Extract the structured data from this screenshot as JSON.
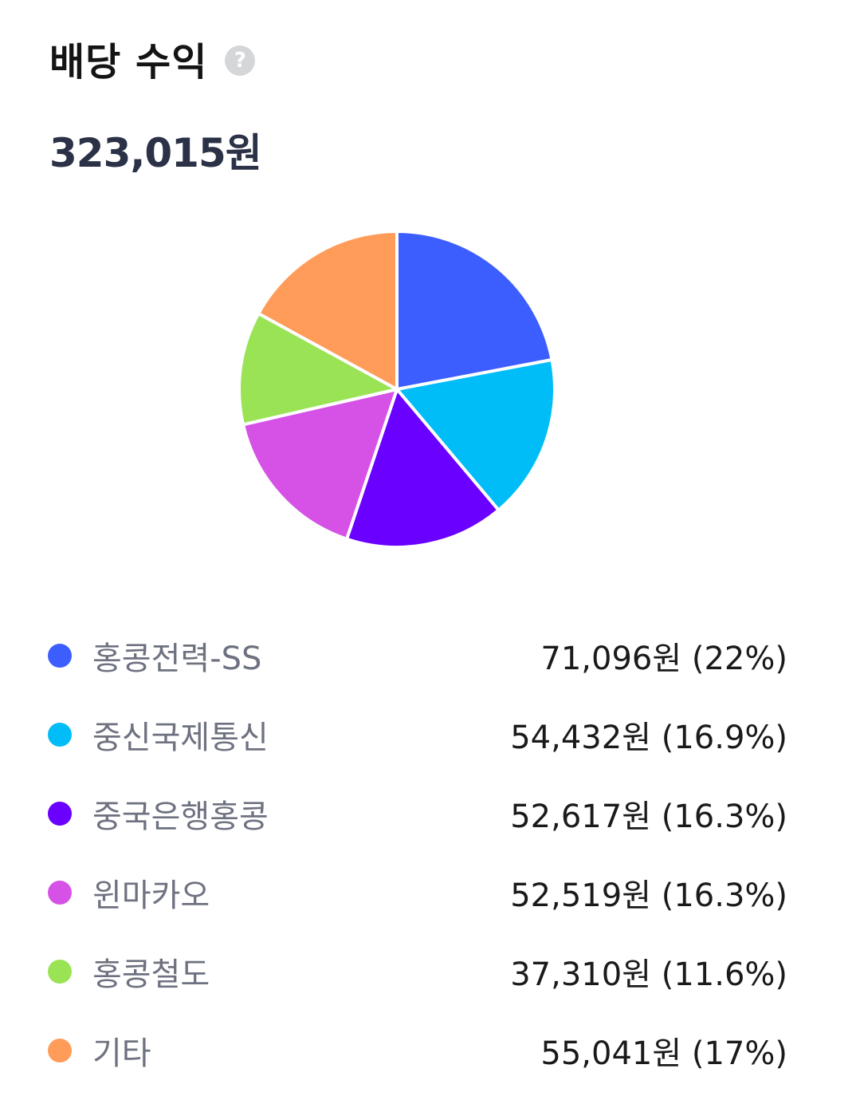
{
  "header": {
    "title": "배당 수익",
    "help_icon_glyph": "?"
  },
  "total": "323,015원",
  "chart_data": {
    "type": "pie",
    "title": "",
    "slices": [
      {
        "name": "홍콩전력-SS",
        "value": 71096,
        "value_label": "71,096원",
        "percent_label": "(22%)",
        "color": "#3D5EFF"
      },
      {
        "name": "중신국제통신",
        "value": 54432,
        "value_label": "54,432원",
        "percent_label": "(16.9%)",
        "color": "#00BDF7"
      },
      {
        "name": "중국은행홍콩",
        "value": 52617,
        "value_label": "52,617원",
        "percent_label": "(16.3%)",
        "color": "#6A00FF"
      },
      {
        "name": "윈마카오",
        "value": 52519,
        "value_label": "52,519원",
        "percent_label": "(16.3%)",
        "color": "#D652E6"
      },
      {
        "name": "홍콩철도",
        "value": 37310,
        "value_label": "37,310원",
        "percent_label": "(11.6%)",
        "color": "#99E355"
      },
      {
        "name": "기타",
        "value": 55041,
        "value_label": "55,041원",
        "percent_label": "(17%)",
        "color": "#FF9C59"
      }
    ],
    "legend_position": "bottom"
  }
}
